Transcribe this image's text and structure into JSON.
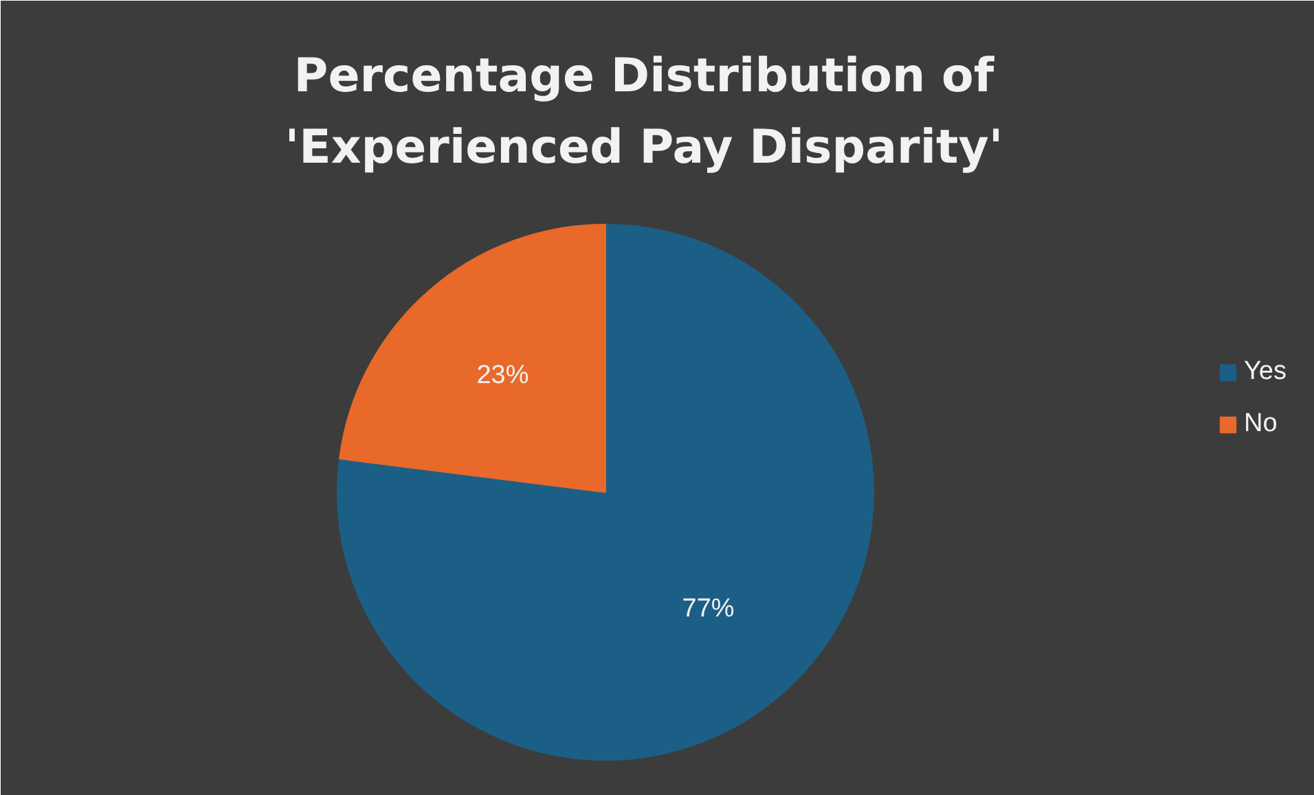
{
  "chart_data": {
    "type": "pie",
    "title": "Percentage Distribution of 'Experienced Pay Disparity'",
    "categories": [
      "Yes",
      "No"
    ],
    "values": [
      77,
      23
    ],
    "colors": [
      "#1c5f86",
      "#e8692a"
    ],
    "value_labels": [
      "77%",
      "23%"
    ],
    "legend": "right"
  }
}
